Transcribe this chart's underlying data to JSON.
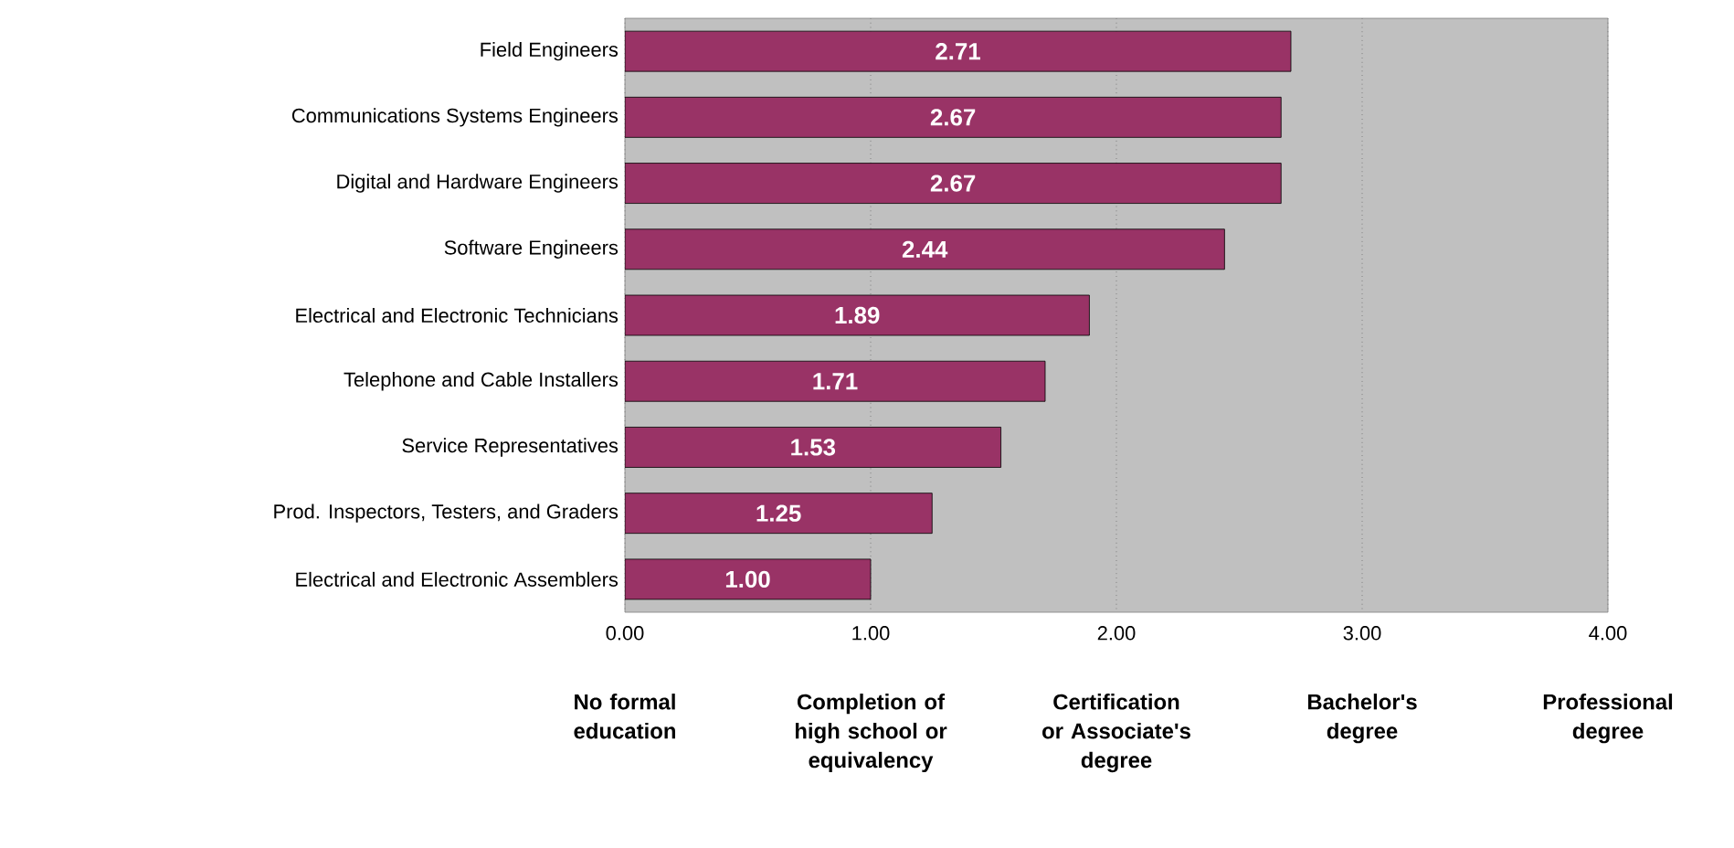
{
  "chart_data": {
    "type": "bar",
    "orientation": "horizontal",
    "categories": [
      "Field Engineers",
      "Communications Systems Engineers",
      "Digital and Hardware Engineers",
      "Software Engineers",
      "Electrical and Electronic Technicians",
      "Telephone and Cable Installers",
      "Service Representatives",
      "Prod. Inspectors, Testers, and Graders",
      "Electrical and Electronic Assemblers"
    ],
    "values": [
      2.71,
      2.67,
      2.67,
      2.44,
      1.89,
      1.71,
      1.53,
      1.25,
      1.0
    ],
    "value_labels": [
      "2.71",
      "2.67",
      "2.67",
      "2.44",
      "1.89",
      "1.71",
      "1.53",
      "1.25",
      "1.00"
    ],
    "color": "#993366",
    "xlim": [
      0,
      4
    ],
    "xticks": [
      {
        "value": 0,
        "label": "0.00"
      },
      {
        "value": 1,
        "label": "1.00"
      },
      {
        "value": 2,
        "label": "2.00"
      },
      {
        "value": 3,
        "label": "3.00"
      },
      {
        "value": 4,
        "label": "4.00"
      }
    ],
    "annotations": [
      "No formal education",
      "Completion of high school or equivalency",
      "Certification or Associate's degree",
      "Bachelor's degree",
      "Professional degree"
    ],
    "grid": "x"
  }
}
